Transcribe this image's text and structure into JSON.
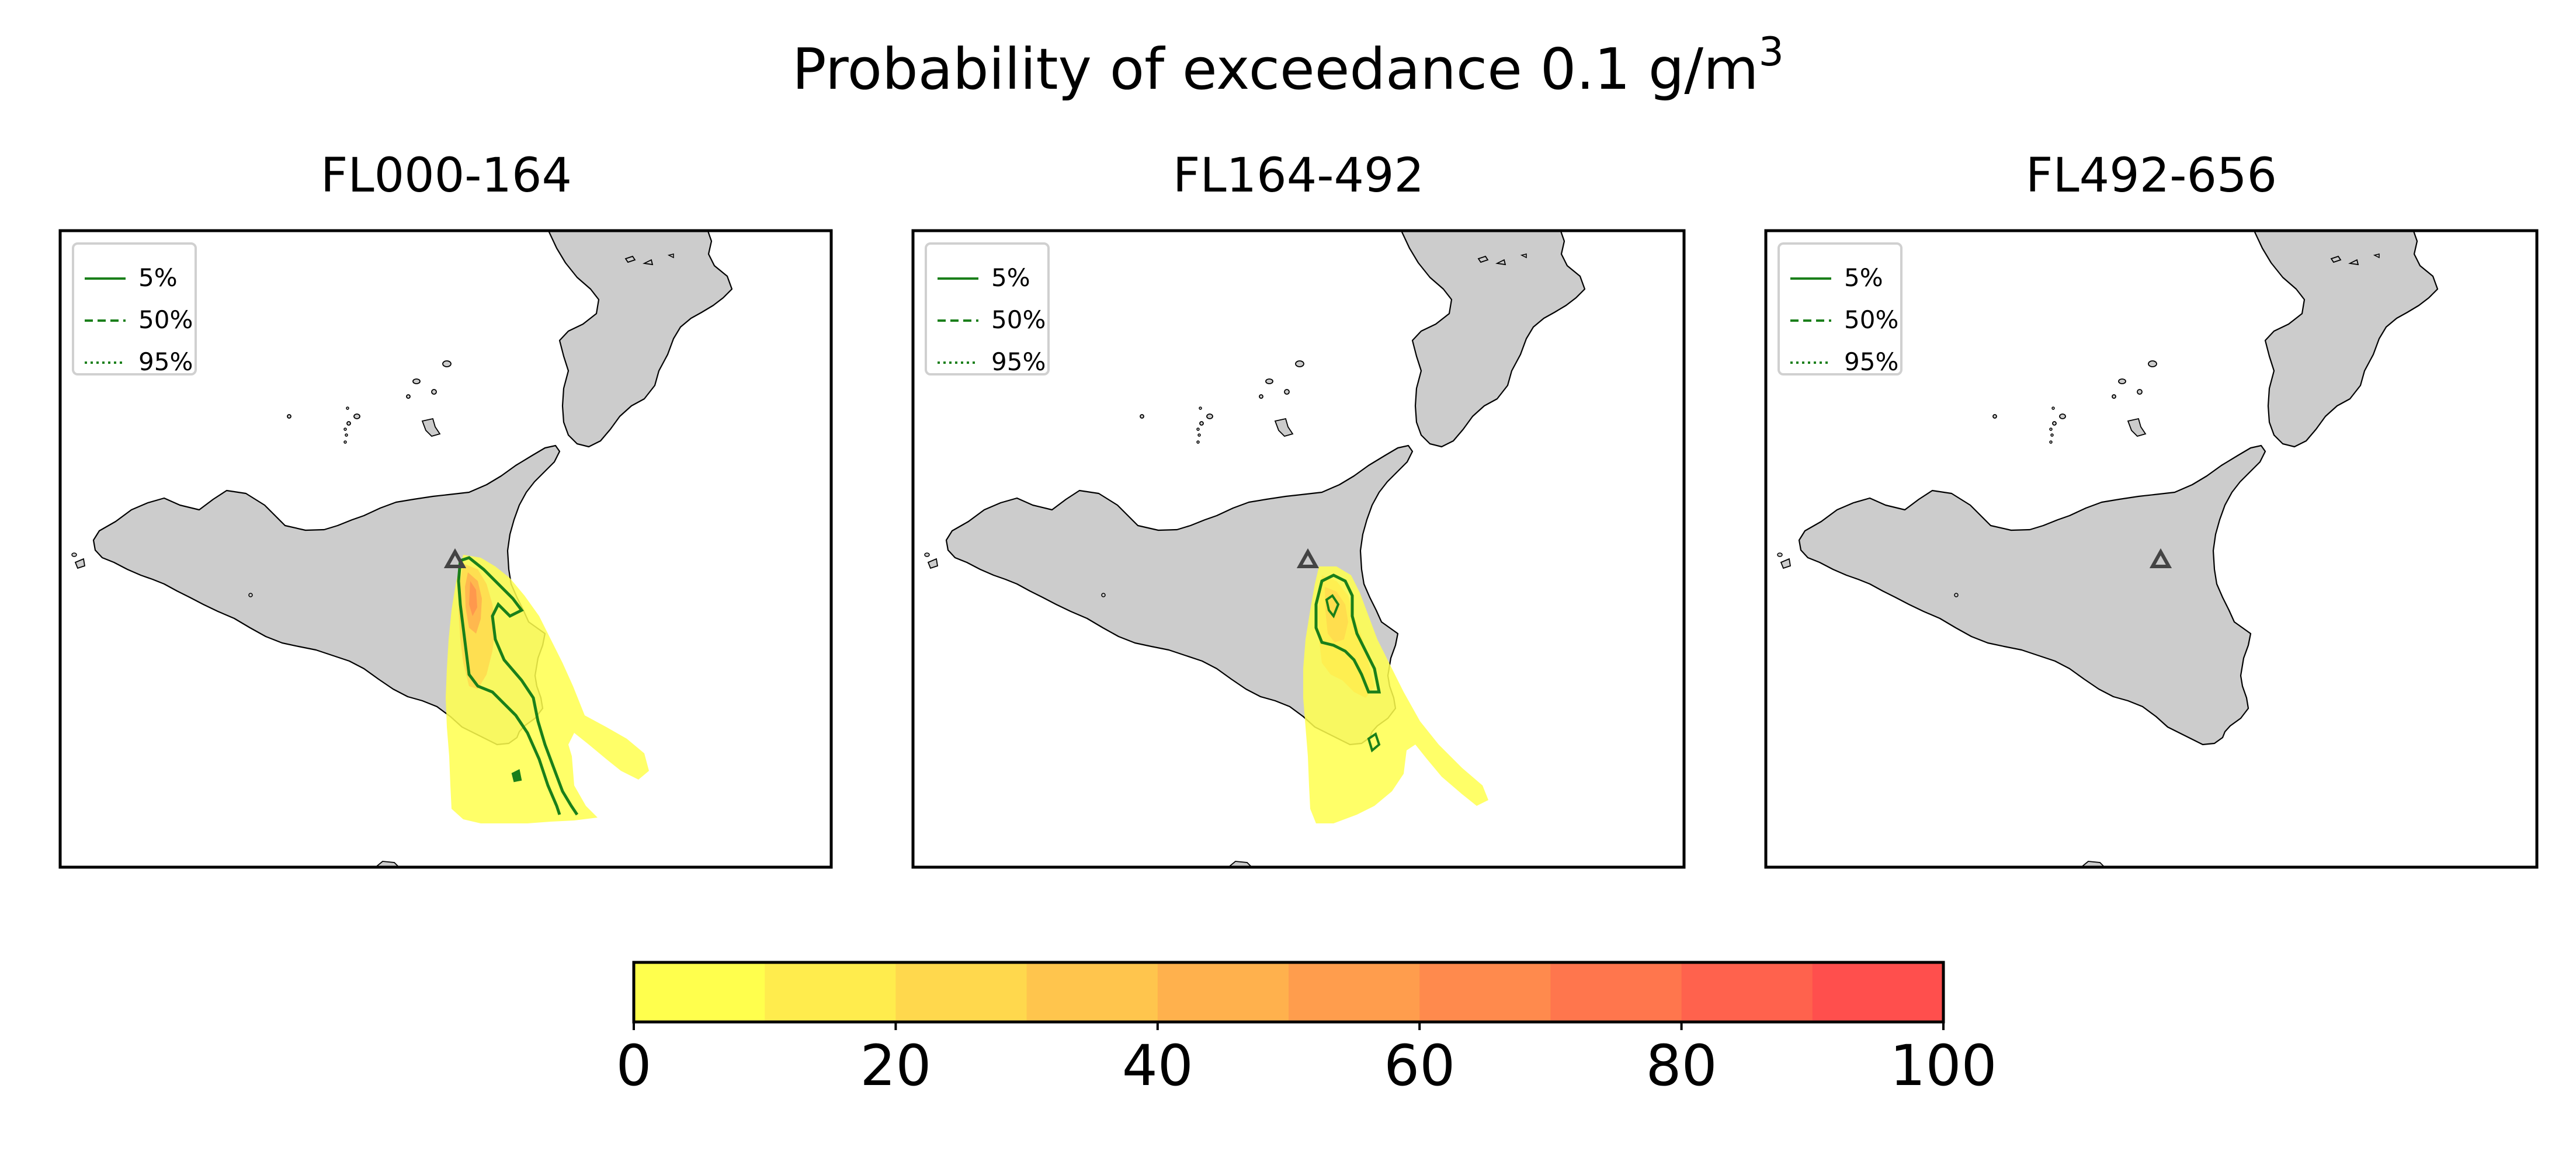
{
  "title": {
    "main": "Probability of exceedance 0.1 g/m",
    "superscript": "3"
  },
  "panels": [
    {
      "title": "FL000-164"
    },
    {
      "title": "FL164-492"
    },
    {
      "title": "FL492-656"
    }
  ],
  "legend": {
    "entries": [
      {
        "label": "5%",
        "style": "solid"
      },
      {
        "label": "50%",
        "style": "dashed"
      },
      {
        "label": "95%",
        "style": "dotted"
      }
    ],
    "placement": "upper-left",
    "contour_color": "#1a7f1a"
  },
  "colorbar": {
    "ticks": [
      "0",
      "20",
      "40",
      "60",
      "80",
      "100"
    ],
    "range": [
      0,
      100
    ],
    "step": 10,
    "colors": [
      "#ffff4d",
      "#ffec4d",
      "#ffd84d",
      "#ffc54d",
      "#ffb14d",
      "#ff9d4d",
      "#ff8a4d",
      "#ff764d",
      "#ff624d",
      "#ff4f4d"
    ]
  },
  "colors": {
    "land": "#cccccc",
    "coast": "#000000",
    "vent_marker": "#444444"
  },
  "icons": {
    "vent": "triangle-icon"
  }
}
